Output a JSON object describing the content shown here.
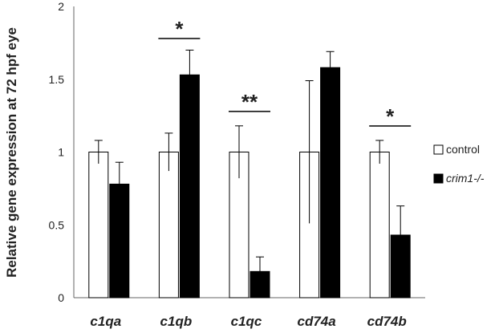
{
  "chart_data": {
    "type": "bar",
    "ylabel": "Relative gene expression at 72 hpf eye",
    "ylim": [
      0,
      2
    ],
    "yticks": [
      "0",
      "0.5",
      "1",
      "1.5",
      "2"
    ],
    "categories": [
      "c1qa",
      "c1qb",
      "c1qc",
      "cd74a",
      "cd74b"
    ],
    "series": [
      {
        "name": "control",
        "values": [
          1.0,
          1.0,
          1.0,
          1.0,
          1.0
        ],
        "errors": [
          0.08,
          0.13,
          0.18,
          0.49,
          0.08
        ],
        "fill": "#ffffff"
      },
      {
        "name": "crim1-/-",
        "values": [
          0.78,
          1.53,
          0.18,
          1.58,
          0.43
        ],
        "errors": [
          0.15,
          0.17,
          0.1,
          0.11,
          0.2
        ],
        "fill": "#000000"
      }
    ],
    "significance": [
      {
        "category": "c1qb",
        "label": "*"
      },
      {
        "category": "c1qc",
        "label": "**"
      },
      {
        "category": "cd74b",
        "label": "*"
      }
    ],
    "legend_position": "right",
    "grid": false
  }
}
